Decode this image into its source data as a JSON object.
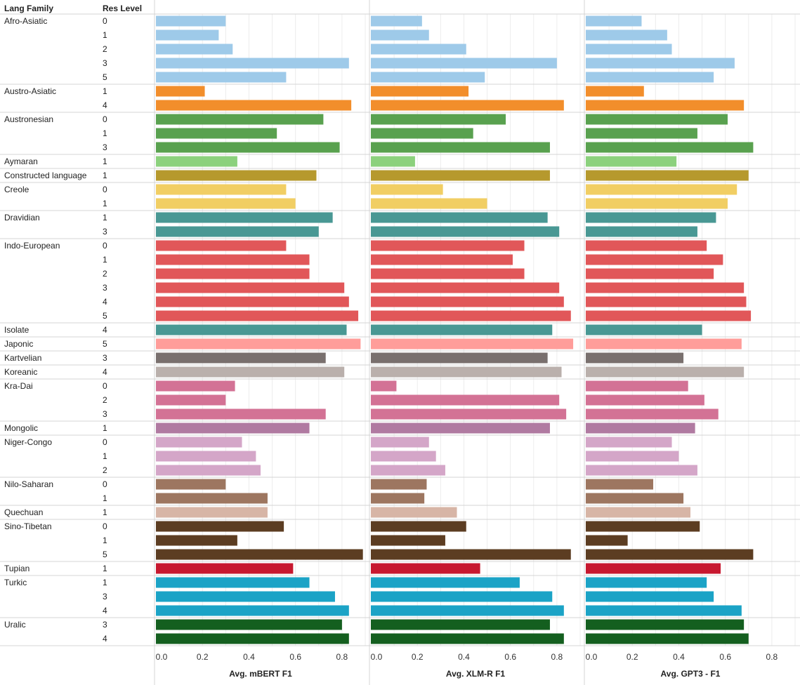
{
  "chart_data": {
    "type": "bar",
    "orientation": "horizontal",
    "row_headers": [
      "Lang Family",
      "Res Level"
    ],
    "panels": [
      {
        "title": "Avg. mBERT  F1",
        "xlim": [
          0,
          0.9
        ],
        "ticks": [
          "0.0",
          "0.2",
          "0.4",
          "0.6",
          "0.8"
        ]
      },
      {
        "title": "Avg. XLM-R  F1",
        "xlim": [
          0,
          0.9
        ],
        "ticks": [
          "0.0",
          "0.2",
          "0.4",
          "0.6",
          "0.8"
        ]
      },
      {
        "title": "Avg. GPT3 - F1",
        "xlim": [
          0,
          0.9
        ],
        "ticks": [
          "0.0",
          "0.2",
          "0.4",
          "0.6",
          "0.8"
        ]
      }
    ],
    "groups": [
      {
        "family": "Afro-Asiatic",
        "color": "#9ecae9",
        "rows": [
          {
            "level": "0",
            "values": [
              0.3,
              0.22,
              0.24
            ]
          },
          {
            "level": "1",
            "values": [
              0.27,
              0.25,
              0.35
            ]
          },
          {
            "level": "2",
            "values": [
              0.33,
              0.41,
              0.37
            ]
          },
          {
            "level": "3",
            "values": [
              0.83,
              0.8,
              0.64
            ]
          },
          {
            "level": "5",
            "values": [
              0.56,
              0.49,
              0.55
            ]
          }
        ]
      },
      {
        "family": "Austro-Asiatic",
        "color": "#f28e2b",
        "rows": [
          {
            "level": "1",
            "values": [
              0.21,
              0.42,
              0.25
            ]
          },
          {
            "level": "4",
            "values": [
              0.84,
              0.83,
              0.68
            ]
          }
        ]
      },
      {
        "family": "Austronesian",
        "color": "#59a14f",
        "rows": [
          {
            "level": "0",
            "values": [
              0.72,
              0.58,
              0.61
            ]
          },
          {
            "level": "1",
            "values": [
              0.52,
              0.44,
              0.48
            ]
          },
          {
            "level": "3",
            "values": [
              0.79,
              0.77,
              0.72
            ]
          }
        ]
      },
      {
        "family": "Aymaran",
        "color": "#8cd17d",
        "rows": [
          {
            "level": "1",
            "values": [
              0.35,
              0.19,
              0.39
            ]
          }
        ]
      },
      {
        "family": "Constructed language",
        "color": "#b6992d",
        "rows": [
          {
            "level": "1",
            "values": [
              0.69,
              0.77,
              0.7
            ]
          }
        ]
      },
      {
        "family": "Creole",
        "color": "#f1ce63",
        "rows": [
          {
            "level": "0",
            "values": [
              0.56,
              0.31,
              0.65
            ]
          },
          {
            "level": "1",
            "values": [
              0.6,
              0.5,
              0.61
            ]
          }
        ]
      },
      {
        "family": "Dravidian",
        "color": "#499894",
        "rows": [
          {
            "level": "1",
            "values": [
              0.76,
              0.76,
              0.56
            ]
          },
          {
            "level": "3",
            "values": [
              0.7,
              0.81,
              0.48
            ]
          }
        ]
      },
      {
        "family": "Indo-European",
        "color": "#e15759",
        "rows": [
          {
            "level": "0",
            "values": [
              0.56,
              0.66,
              0.52
            ]
          },
          {
            "level": "1",
            "values": [
              0.66,
              0.61,
              0.59
            ]
          },
          {
            "level": "2",
            "values": [
              0.66,
              0.66,
              0.55
            ]
          },
          {
            "level": "3",
            "values": [
              0.81,
              0.81,
              0.68
            ]
          },
          {
            "level": "4",
            "values": [
              0.83,
              0.83,
              0.69
            ]
          },
          {
            "level": "5",
            "values": [
              0.87,
              0.86,
              0.71
            ]
          }
        ]
      },
      {
        "family": "Isolate",
        "color": "#499894",
        "rows": [
          {
            "level": "4",
            "values": [
              0.82,
              0.78,
              0.5
            ]
          }
        ]
      },
      {
        "family": "Japonic",
        "color": "#ff9d9a",
        "rows": [
          {
            "level": "5",
            "values": [
              0.88,
              0.87,
              0.67
            ]
          }
        ]
      },
      {
        "family": "Kartvelian",
        "color": "#79706e",
        "rows": [
          {
            "level": "3",
            "values": [
              0.73,
              0.76,
              0.42
            ]
          }
        ]
      },
      {
        "family": "Koreanic",
        "color": "#bab0ac",
        "rows": [
          {
            "level": "4",
            "values": [
              0.81,
              0.82,
              0.68
            ]
          }
        ]
      },
      {
        "family": "Kra-Dai",
        "color": "#d37295",
        "rows": [
          {
            "level": "0",
            "values": [
              0.34,
              0.11,
              0.44
            ]
          },
          {
            "level": "2",
            "values": [
              0.3,
              0.81,
              0.51
            ]
          },
          {
            "level": "3",
            "values": [
              0.73,
              0.84,
              0.57
            ]
          }
        ]
      },
      {
        "family": "Mongolic",
        "color": "#b07aa1",
        "rows": [
          {
            "level": "1",
            "values": [
              0.66,
              0.77,
              0.47
            ]
          }
        ]
      },
      {
        "family": "Niger-Congo",
        "color": "#d4a6c8",
        "rows": [
          {
            "level": "0",
            "values": [
              0.37,
              0.25,
              0.37
            ]
          },
          {
            "level": "1",
            "values": [
              0.43,
              0.28,
              0.4
            ]
          },
          {
            "level": "2",
            "values": [
              0.45,
              0.32,
              0.48
            ]
          }
        ]
      },
      {
        "family": "Nilo-Saharan",
        "color": "#9d7660",
        "rows": [
          {
            "level": "0",
            "values": [
              0.3,
              0.24,
              0.29
            ]
          },
          {
            "level": "1",
            "values": [
              0.48,
              0.23,
              0.42
            ]
          }
        ]
      },
      {
        "family": "Quechuan",
        "color": "#d7b5a6",
        "rows": [
          {
            "level": "1",
            "values": [
              0.48,
              0.37,
              0.45
            ]
          }
        ]
      },
      {
        "family": "Sino-Tibetan",
        "color": "#5c3d22",
        "rows": [
          {
            "level": "0",
            "values": [
              0.55,
              0.41,
              0.49
            ]
          },
          {
            "level": "1",
            "values": [
              0.35,
              0.32,
              0.18
            ]
          },
          {
            "level": "5",
            "values": [
              0.89,
              0.86,
              0.72
            ]
          }
        ]
      },
      {
        "family": "Tupian",
        "color": "#c7182f",
        "rows": [
          {
            "level": "1",
            "values": [
              0.59,
              0.47,
              0.58
            ]
          }
        ]
      },
      {
        "family": "Turkic",
        "color": "#1ba3c6",
        "rows": [
          {
            "level": "1",
            "values": [
              0.66,
              0.64,
              0.52
            ]
          },
          {
            "level": "3",
            "values": [
              0.77,
              0.78,
              0.55
            ]
          },
          {
            "level": "4",
            "values": [
              0.83,
              0.83,
              0.67
            ]
          }
        ]
      },
      {
        "family": "Uralic",
        "color": "#145f1f",
        "rows": [
          {
            "level": "3",
            "values": [
              0.8,
              0.77,
              0.68
            ]
          },
          {
            "level": "4",
            "values": [
              0.83,
              0.83,
              0.7
            ]
          }
        ]
      }
    ]
  }
}
